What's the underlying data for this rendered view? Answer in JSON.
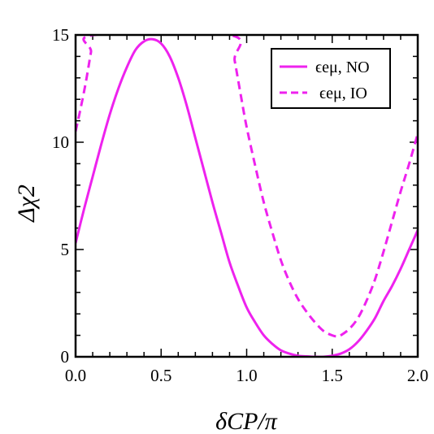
{
  "chart_data": {
    "type": "line",
    "xlabel": "δCP/π",
    "ylabel": "Δχ2",
    "xlim": [
      0.0,
      2.0
    ],
    "ylim": [
      0,
      15
    ],
    "x_ticks": [
      "0.0",
      "0.5",
      "1.0",
      "1.5",
      "2.0"
    ],
    "y_ticks": [
      "0",
      "5",
      "10",
      "15"
    ],
    "grid": false,
    "legend_position": "top-right",
    "series": [
      {
        "name": "ϵeμ, NO",
        "style": "solid",
        "color": "#ee22ee",
        "x": [
          0.0,
          0.05,
          0.1,
          0.15,
          0.2,
          0.25,
          0.3,
          0.35,
          0.4,
          0.45,
          0.5,
          0.55,
          0.6,
          0.65,
          0.7,
          0.75,
          0.8,
          0.85,
          0.9,
          0.95,
          1.0,
          1.05,
          1.1,
          1.15,
          1.2,
          1.25,
          1.3,
          1.35,
          1.4,
          1.45,
          1.5,
          1.55,
          1.6,
          1.65,
          1.7,
          1.75,
          1.8,
          1.85,
          1.9,
          1.95,
          2.0
        ],
        "y": [
          5.3,
          6.9,
          8.4,
          9.9,
          11.3,
          12.5,
          13.5,
          14.3,
          14.7,
          14.8,
          14.6,
          14.0,
          13.0,
          11.7,
          10.2,
          8.7,
          7.2,
          5.8,
          4.4,
          3.3,
          2.3,
          1.6,
          1.0,
          0.6,
          0.3,
          0.15,
          0.05,
          0.02,
          0.0,
          0.0,
          0.05,
          0.15,
          0.35,
          0.7,
          1.2,
          1.8,
          2.6,
          3.3,
          4.1,
          5.0,
          5.9
        ]
      },
      {
        "name": "ϵeμ, IO",
        "style": "dashed",
        "color": "#ee22ee",
        "x": [
          0.0,
          0.03,
          0.06,
          0.09,
          0.11,
          0.9,
          0.93,
          0.97,
          1.0,
          1.05,
          1.1,
          1.15,
          1.2,
          1.25,
          1.3,
          1.35,
          1.4,
          1.45,
          1.5,
          1.53,
          1.55,
          1.6,
          1.65,
          1.7,
          1.75,
          1.8,
          1.85,
          1.9,
          1.95,
          2.0
        ],
        "y": [
          10.5,
          11.6,
          12.8,
          14.2,
          15.0,
          15.0,
          13.8,
          12.0,
          10.7,
          8.9,
          7.2,
          5.8,
          4.5,
          3.5,
          2.7,
          2.1,
          1.6,
          1.2,
          1.0,
          0.95,
          1.0,
          1.3,
          1.8,
          2.6,
          3.6,
          4.9,
          6.3,
          7.7,
          9.0,
          10.4
        ]
      }
    ]
  }
}
